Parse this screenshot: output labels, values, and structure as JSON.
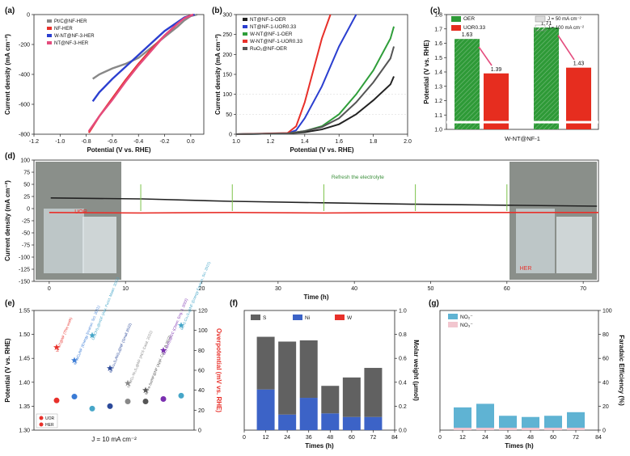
{
  "colors": {
    "red": "#e8302a",
    "blue": "#2b3fd0",
    "green": "#2f9e3a",
    "pink": "#e44c7d",
    "gray": "#888888",
    "dark": "#222222",
    "oer_green": "#2e9a37",
    "uor_red": "#e62d1f",
    "teal": "#46a6c8",
    "purple": "#7a2fb0",
    "navy": "#2c4a9a"
  },
  "chart_data": [
    {
      "panel": "(a)",
      "type": "line",
      "xlabel": "Potential (V vs. RHE)",
      "ylabel": "Current density (mA cm⁻²)",
      "xlim": [
        -1.2,
        0.1
      ],
      "ylim": [
        -800,
        0
      ],
      "xticks": [
        "-1.2",
        "-1.0",
        "-0.8",
        "-0.6",
        "-0.4",
        "-0.2",
        "0.0"
      ],
      "yticks": [
        "0",
        "-200",
        "-400",
        "-600",
        "-800"
      ],
      "legend": [
        "Pt/C@NF-HER",
        "NF-HER",
        "W-NT@NF-3-HER",
        "NT@NF-3-HER"
      ],
      "series": [
        {
          "name": "Pt/C@NF-HER",
          "color": "#888888",
          "x": [
            0.05,
            0.0,
            -0.05,
            -0.1,
            -0.2,
            -0.3,
            -0.4,
            -0.5,
            -0.6,
            -0.7,
            -0.75
          ],
          "y": [
            0,
            -10,
            -40,
            -80,
            -150,
            -220,
            -290,
            -330,
            -360,
            -400,
            -430
          ]
        },
        {
          "name": "NF-HER",
          "color": "#e8302a",
          "x": [
            0.02,
            -0.05,
            -0.1,
            -0.2,
            -0.3,
            -0.4,
            -0.5,
            -0.6,
            -0.7,
            -0.78
          ],
          "y": [
            0,
            -20,
            -60,
            -140,
            -230,
            -330,
            -440,
            -560,
            -680,
            -790
          ]
        },
        {
          "name": "W-NT@NF-3-HER",
          "color": "#2b3fd0",
          "x": [
            0.03,
            -0.05,
            -0.1,
            -0.2,
            -0.3,
            -0.4,
            -0.5,
            -0.6,
            -0.7,
            -0.75
          ],
          "y": [
            0,
            -20,
            -50,
            -110,
            -190,
            -270,
            -350,
            -430,
            -520,
            -580
          ]
        },
        {
          "name": "NT@NF-3-HER",
          "color": "#e44c7d",
          "x": [
            0.02,
            -0.05,
            -0.1,
            -0.2,
            -0.3,
            -0.4,
            -0.5,
            -0.6,
            -0.7,
            -0.78
          ],
          "y": [
            0,
            -25,
            -60,
            -140,
            -240,
            -340,
            -450,
            -570,
            -680,
            -780
          ]
        }
      ]
    },
    {
      "panel": "(b)",
      "type": "line",
      "xlabel": "Potential (V vs. RHE)",
      "ylabel": "Current density (mA cm⁻²)",
      "xlim": [
        1.0,
        2.0
      ],
      "ylim": [
        0,
        300
      ],
      "xticks": [
        "1.0",
        "1.2",
        "1.4",
        "1.6",
        "1.8",
        "2.0"
      ],
      "yticks": [
        "0",
        "50",
        "100",
        "150",
        "200",
        "250",
        "300"
      ],
      "legend": [
        "NT@NF-1-OER",
        "NT@NF-1-UOR0.33",
        "W-NT@NF-1-OER",
        "W-NT@NF-1-UOR0.33",
        "RuO₂@NF-OER"
      ],
      "series": [
        {
          "name": "NT@NF-1-OER",
          "color": "#222222",
          "x": [
            1.0,
            1.3,
            1.4,
            1.5,
            1.6,
            1.7,
            1.8,
            1.9,
            1.92
          ],
          "y": [
            0,
            2,
            5,
            12,
            25,
            50,
            85,
            125,
            145
          ]
        },
        {
          "name": "NT@NF-1-UOR0.33",
          "color": "#2b3fd0",
          "x": [
            1.0,
            1.3,
            1.35,
            1.4,
            1.5,
            1.6,
            1.7
          ],
          "y": [
            0,
            2,
            10,
            40,
            120,
            220,
            300
          ]
        },
        {
          "name": "W-NT@NF-1-OER",
          "color": "#2f9e3a",
          "x": [
            1.0,
            1.3,
            1.4,
            1.5,
            1.6,
            1.7,
            1.8,
            1.9,
            1.92
          ],
          "y": [
            0,
            2,
            8,
            20,
            50,
            100,
            160,
            240,
            270
          ]
        },
        {
          "name": "W-NT@NF-1-UOR0.33",
          "color": "#e8302a",
          "x": [
            1.0,
            1.3,
            1.35,
            1.4,
            1.45,
            1.5,
            1.55
          ],
          "y": [
            0,
            3,
            20,
            80,
            160,
            240,
            300
          ]
        },
        {
          "name": "RuO₂@NF-OER",
          "color": "#555555",
          "x": [
            1.0,
            1.3,
            1.4,
            1.5,
            1.6,
            1.7,
            1.8,
            1.9,
            1.92
          ],
          "y": [
            0,
            2,
            8,
            18,
            40,
            80,
            130,
            190,
            220
          ]
        }
      ]
    },
    {
      "panel": "(c)",
      "type": "bar",
      "ylabel": "Potential (V vs. RHE)",
      "xlabel": "W-NT@NF-1",
      "ylim": [
        1.0,
        1.8
      ],
      "yticks": [
        "1.0",
        "1.1",
        "1.2",
        "1.3",
        "1.4",
        "1.5",
        "1.6",
        "1.7",
        "1.8"
      ],
      "legend": [
        "OER",
        "UOR0.33",
        "J = 50 mA cm⁻²",
        "J = 100 mA cm⁻²"
      ],
      "bars": [
        {
          "series": "OER",
          "group": "J = 50 mA cm⁻²",
          "value": 1.63,
          "label": "1.63",
          "color": "#2e9a37"
        },
        {
          "series": "UOR0.33",
          "group": "J = 50 mA cm⁻²",
          "value": 1.39,
          "label": "1.39",
          "color": "#e62d1f"
        },
        {
          "series": "OER",
          "group": "J = 100 mA cm⁻²",
          "value": 1.71,
          "label": "1.71",
          "color": "#2e9a37"
        },
        {
          "series": "UOR0.33",
          "group": "J = 100 mA cm⁻²",
          "value": 1.43,
          "label": "1.43",
          "color": "#e62d1f"
        }
      ]
    },
    {
      "panel": "(d)",
      "type": "line",
      "xlabel": "Time (h)",
      "ylabel": "Current density (mA cm⁻²)",
      "xlim": [
        0,
        72
      ],
      "ylim": [
        -150,
        100
      ],
      "xticks": [
        "0",
        "10",
        "20",
        "30",
        "40",
        "50",
        "60",
        "70"
      ],
      "yticks": [
        "100",
        "75",
        "50",
        "25",
        "0",
        "-25",
        "-50",
        "-75",
        "-100",
        "-125",
        "-150"
      ],
      "annotation": "Refresh the electrolyte",
      "photo_labels": [
        "UOR",
        "HER"
      ],
      "series": [
        {
          "name": "UOR",
          "color": "#222222",
          "x": [
            0,
            12,
            24,
            36,
            48,
            60,
            72
          ],
          "y": [
            22,
            20,
            15,
            12,
            9,
            7,
            5
          ]
        },
        {
          "name": "HER",
          "color": "#e8302a",
          "x": [
            0,
            12,
            24,
            36,
            48,
            60,
            72
          ],
          "y": [
            -8,
            -9,
            -8,
            -9,
            -8,
            -8,
            -8
          ]
        }
      ]
    },
    {
      "panel": "(e)",
      "type": "scatter",
      "ylabel": "Potential (V vs. RHE)",
      "y2label": "Overpotential (mV vs. RHE)",
      "xlabel": "J = 10 mA cm⁻²",
      "ylim": [
        1.3,
        1.55
      ],
      "y2lim": [
        0,
        120
      ],
      "yticks": [
        "1.30",
        "1.35",
        "1.40",
        "1.45",
        "1.50",
        "1.55"
      ],
      "y2ticks": [
        "0",
        "20",
        "40",
        "60",
        "80",
        "100",
        "120"
      ],
      "legend": [
        "UOR",
        "HER"
      ],
      "points": [
        {
          "label": "W-NT@NF (This work)",
          "uor": 1.362,
          "her": 83,
          "color": "#e8302a"
        },
        {
          "label": "Ni-WOₓ/NF (Energy Environ. Sci. 2021)",
          "uor": 1.37,
          "her": 70,
          "color": "#3a7bd5"
        },
        {
          "label": "Co(OH)₂@HOF (Adv. Funct. Mater. 2021)",
          "uor": 1.345,
          "her": 95,
          "color": "#46a6c8"
        },
        {
          "label": "Ni-Co₃S₄/NiS₃@NF (Small 2022)",
          "uor": 1.35,
          "her": 62,
          "color": "#2c4a9a"
        },
        {
          "label": "Ni-WOₓ-Ni₃S₂@NF (ACS Catal. 2022)",
          "uor": 1.36,
          "her": 47,
          "color": "#888888"
        },
        {
          "label": "Ni-Fe-Se/NF@NF (Appl. Catal. B 2022)",
          "uor": 1.36,
          "her": 40,
          "color": "#555555"
        },
        {
          "label": "NiS-MoS₂@CC (Chem. Eng. J. 2022)",
          "uor": 1.365,
          "her": 80,
          "color": "#7a2fb0"
        },
        {
          "label": "Rh-S Co₃S₄@NF (Energy Environ. Sci. 2021)",
          "uor": 1.372,
          "her": 105,
          "color": "#46a6c8"
        }
      ]
    },
    {
      "panel": "(f)",
      "type": "bar",
      "stacked": true,
      "xlabel": "Times (h)",
      "ylabel": "Molar weight (μmol)",
      "xlim": [
        0,
        84
      ],
      "ylim": [
        0,
        1.0
      ],
      "xticks": [
        "0",
        "12",
        "24",
        "36",
        "48",
        "60",
        "72",
        "84"
      ],
      "yticks": [
        "0.0",
        "0.2",
        "0.4",
        "0.6",
        "0.8",
        "1.0"
      ],
      "legend": [
        "S",
        "Ni",
        "W"
      ],
      "categories": [
        "12",
        "24",
        "36",
        "48",
        "60",
        "72"
      ],
      "series": [
        {
          "name": "S",
          "color": "#616161",
          "values": [
            0.44,
            0.61,
            0.48,
            0.23,
            0.33,
            0.41
          ]
        },
        {
          "name": "Ni",
          "color": "#3c63c7",
          "values": [
            0.34,
            0.13,
            0.27,
            0.14,
            0.11,
            0.11
          ]
        },
        {
          "name": "W",
          "color": "#e8302a",
          "values": [
            0.0,
            0.0,
            0.0,
            0.0,
            0.0,
            0.0
          ]
        }
      ]
    },
    {
      "panel": "(g)",
      "type": "bar",
      "xlabel": "Times (h)",
      "ylabel": "Faradaic Efficiency (%)",
      "xlim": [
        0,
        84
      ],
      "ylim": [
        0,
        100
      ],
      "xticks": [
        "0",
        "12",
        "24",
        "36",
        "48",
        "60",
        "72",
        "84"
      ],
      "yticks": [
        "0",
        "20",
        "40",
        "60",
        "80",
        "100"
      ],
      "legend": [
        "NO₂⁻",
        "NO₃⁻"
      ],
      "categories": [
        "12",
        "24",
        "36",
        "48",
        "60",
        "72"
      ],
      "series": [
        {
          "name": "NO₂⁻",
          "color": "#5fb3d3",
          "values": [
            19,
            22,
            12,
            11,
            12,
            15
          ]
        },
        {
          "name": "NO₃⁻",
          "color": "#f2c6cf",
          "values": [
            2,
            2,
            2,
            2,
            2,
            2
          ]
        }
      ]
    }
  ]
}
